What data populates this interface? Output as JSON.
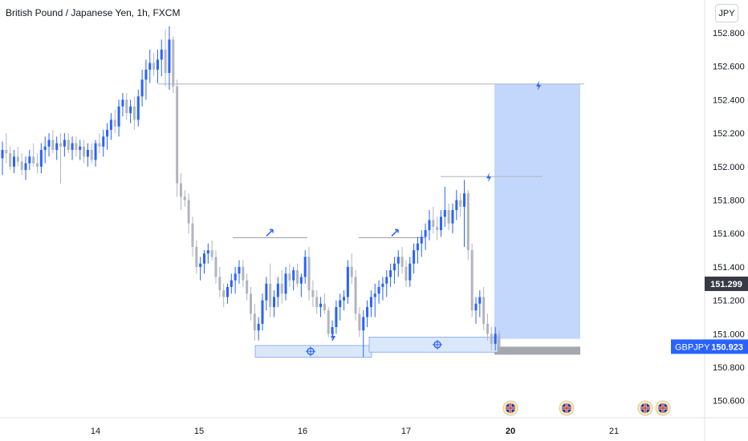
{
  "header": {
    "title": "British Pound / Japanese Yen, 1h, FXCM",
    "currency_button": "JPY"
  },
  "price_tags": {
    "crosshair_price": "151.299",
    "symbol": "GBPJPY",
    "last_price": "150.923"
  },
  "colors": {
    "up": "#2962ff",
    "down": "#b2b5be",
    "zone": "#bbd3fb",
    "axis_bg": "#ffffff",
    "tag_dark": "#363a45",
    "tag_blue": "#2962ff"
  },
  "chart_data": {
    "type": "candlestick",
    "title": "British Pound / Japanese Yen, 1h, FXCM",
    "ylim": [
      150.45,
      152.9
    ],
    "y_ticks": [
      "152.800",
      "152.600",
      "152.400",
      "152.200",
      "152.000",
      "151.800",
      "151.600",
      "151.400",
      "151.200",
      "151.000",
      "150.800",
      "150.600"
    ],
    "x_ticks": [
      "14",
      "15",
      "16",
      "17",
      "20",
      "21"
    ],
    "last_price": 150.923,
    "marked_price": 151.299,
    "series_ohlc": [
      [
        152.05,
        152.15,
        151.95,
        152.1
      ],
      [
        152.1,
        152.2,
        152.02,
        152.08
      ],
      [
        152.08,
        152.12,
        151.98,
        152.0
      ],
      [
        152.0,
        152.1,
        151.96,
        152.06
      ],
      [
        152.06,
        152.12,
        152.0,
        152.03
      ],
      [
        152.03,
        152.08,
        151.95,
        151.98
      ],
      [
        151.98,
        152.06,
        151.92,
        152.02
      ],
      [
        152.02,
        152.1,
        151.98,
        152.06
      ],
      [
        152.06,
        152.14,
        152.0,
        152.02
      ],
      [
        152.02,
        152.08,
        151.96,
        152.0
      ],
      [
        152.0,
        152.14,
        151.96,
        152.1
      ],
      [
        152.1,
        152.18,
        152.02,
        152.12
      ],
      [
        152.12,
        152.2,
        152.06,
        152.16
      ],
      [
        152.16,
        152.22,
        152.08,
        152.1
      ],
      [
        152.1,
        152.18,
        152.04,
        152.14
      ],
      [
        152.14,
        152.2,
        151.9,
        152.12
      ],
      [
        152.12,
        152.2,
        152.06,
        152.16
      ],
      [
        152.16,
        152.2,
        152.08,
        152.1
      ],
      [
        152.1,
        152.18,
        152.04,
        152.14
      ],
      [
        152.14,
        152.18,
        152.06,
        152.1
      ],
      [
        152.1,
        152.16,
        152.04,
        152.12
      ],
      [
        152.12,
        152.16,
        152.02,
        152.06
      ],
      [
        152.06,
        152.14,
        152.0,
        152.1
      ],
      [
        152.1,
        152.14,
        152.02,
        152.04
      ],
      [
        152.04,
        152.16,
        152.0,
        152.14
      ],
      [
        152.14,
        152.2,
        152.08,
        152.12
      ],
      [
        152.12,
        152.22,
        152.06,
        152.18
      ],
      [
        152.18,
        152.26,
        152.1,
        152.22
      ],
      [
        152.22,
        152.32,
        152.16,
        152.28
      ],
      [
        152.28,
        152.34,
        152.2,
        152.24
      ],
      [
        152.24,
        152.4,
        152.18,
        152.36
      ],
      [
        152.36,
        152.44,
        152.3,
        152.4
      ],
      [
        152.4,
        152.44,
        152.28,
        152.32
      ],
      [
        152.32,
        152.4,
        152.26,
        152.36
      ],
      [
        152.36,
        152.42,
        152.22,
        152.28
      ],
      [
        152.28,
        152.46,
        152.24,
        152.42
      ],
      [
        152.42,
        152.58,
        152.36,
        152.52
      ],
      [
        152.52,
        152.64,
        152.4,
        152.58
      ],
      [
        152.58,
        152.7,
        152.5,
        152.62
      ],
      [
        152.62,
        152.68,
        152.54,
        152.58
      ],
      [
        152.58,
        152.7,
        152.5,
        152.64
      ],
      [
        152.64,
        152.76,
        152.54,
        152.7
      ],
      [
        152.7,
        152.82,
        152.48,
        152.56
      ],
      [
        152.56,
        152.84,
        152.46,
        152.76
      ],
      [
        152.76,
        152.78,
        152.44,
        152.48
      ],
      [
        152.48,
        152.52,
        151.82,
        151.9
      ],
      [
        151.9,
        151.96,
        151.74,
        151.82
      ],
      [
        151.82,
        151.86,
        151.76,
        151.8
      ],
      [
        151.8,
        151.84,
        151.6,
        151.66
      ],
      [
        151.66,
        151.7,
        151.46,
        151.52
      ],
      [
        151.52,
        151.56,
        151.36,
        151.4
      ],
      [
        151.4,
        151.46,
        151.32,
        151.42
      ],
      [
        151.42,
        151.5,
        151.36,
        151.48
      ],
      [
        151.48,
        151.54,
        151.42,
        151.5
      ],
      [
        151.5,
        151.56,
        151.44,
        151.46
      ],
      [
        151.46,
        151.5,
        151.3,
        151.34
      ],
      [
        151.34,
        151.4,
        151.22,
        151.26
      ],
      [
        151.26,
        151.3,
        151.16,
        151.22
      ],
      [
        151.22,
        151.3,
        151.18,
        151.28
      ],
      [
        151.28,
        151.36,
        151.24,
        151.32
      ],
      [
        151.32,
        151.4,
        151.24,
        151.36
      ],
      [
        151.36,
        151.44,
        151.3,
        151.4
      ],
      [
        151.4,
        151.44,
        151.28,
        151.32
      ],
      [
        151.32,
        151.36,
        151.2,
        151.24
      ],
      [
        151.24,
        151.28,
        151.08,
        151.12
      ],
      [
        151.12,
        151.18,
        150.96,
        151.02
      ],
      [
        151.02,
        151.1,
        150.96,
        151.06
      ],
      [
        151.06,
        151.24,
        151.02,
        151.2
      ],
      [
        151.2,
        151.34,
        151.14,
        151.3
      ],
      [
        151.3,
        151.42,
        151.1,
        151.16
      ],
      [
        151.16,
        151.26,
        151.1,
        151.22
      ],
      [
        151.22,
        151.34,
        151.16,
        151.3
      ],
      [
        151.3,
        151.38,
        151.18,
        151.24
      ],
      [
        151.24,
        151.4,
        151.2,
        151.36
      ],
      [
        151.36,
        151.42,
        151.28,
        151.32
      ],
      [
        151.32,
        151.4,
        151.26,
        151.38
      ],
      [
        151.38,
        151.42,
        151.28,
        151.3
      ],
      [
        151.3,
        151.36,
        151.22,
        151.34
      ],
      [
        151.34,
        151.5,
        151.3,
        151.46
      ],
      [
        151.46,
        151.52,
        151.2,
        151.26
      ],
      [
        151.26,
        151.32,
        151.16,
        151.22
      ],
      [
        151.22,
        151.26,
        151.12,
        151.16
      ],
      [
        151.16,
        151.22,
        151.1,
        151.18
      ],
      [
        151.18,
        151.24,
        151.12,
        151.14
      ],
      [
        151.14,
        151.16,
        150.98,
        151.0
      ],
      [
        151.0,
        151.08,
        150.96,
        151.04
      ],
      [
        151.04,
        151.2,
        151.0,
        151.16
      ],
      [
        151.16,
        151.24,
        151.08,
        151.2
      ],
      [
        151.2,
        151.26,
        151.14,
        151.22
      ],
      [
        151.22,
        151.44,
        151.18,
        151.4
      ],
      [
        151.4,
        151.48,
        151.3,
        151.34
      ],
      [
        151.34,
        151.38,
        151.08,
        151.12
      ],
      [
        151.12,
        151.16,
        150.98,
        151.02
      ],
      [
        151.02,
        151.14,
        150.86,
        151.1
      ],
      [
        151.1,
        151.2,
        151.04,
        151.16
      ],
      [
        151.16,
        151.26,
        151.1,
        151.22
      ],
      [
        151.22,
        151.3,
        151.1,
        151.24
      ],
      [
        151.24,
        151.32,
        151.18,
        151.28
      ],
      [
        151.28,
        151.34,
        151.2,
        151.3
      ],
      [
        151.3,
        151.38,
        151.22,
        151.34
      ],
      [
        151.34,
        151.42,
        151.28,
        151.38
      ],
      [
        151.38,
        151.46,
        151.3,
        151.42
      ],
      [
        151.42,
        151.5,
        151.34,
        151.46
      ],
      [
        151.46,
        151.52,
        151.36,
        151.4
      ],
      [
        151.4,
        151.44,
        151.28,
        151.32
      ],
      [
        151.32,
        151.46,
        151.28,
        151.42
      ],
      [
        151.42,
        151.54,
        151.36,
        151.5
      ],
      [
        151.5,
        151.58,
        151.42,
        151.54
      ],
      [
        151.54,
        151.62,
        151.46,
        151.58
      ],
      [
        151.58,
        151.66,
        151.5,
        151.62
      ],
      [
        151.62,
        151.74,
        151.56,
        151.68
      ],
      [
        151.68,
        151.76,
        151.6,
        151.64
      ],
      [
        151.64,
        151.7,
        151.56,
        151.62
      ],
      [
        151.62,
        151.74,
        151.58,
        151.7
      ],
      [
        151.7,
        151.88,
        151.64,
        151.74
      ],
      [
        151.74,
        151.78,
        151.62,
        151.66
      ],
      [
        151.66,
        151.78,
        151.6,
        151.74
      ],
      [
        151.74,
        151.86,
        151.68,
        151.8
      ],
      [
        151.8,
        151.84,
        151.7,
        151.76
      ],
      [
        151.76,
        151.92,
        151.52,
        151.84
      ],
      [
        151.84,
        151.86,
        151.44,
        151.5
      ],
      [
        151.5,
        151.54,
        151.1,
        151.14
      ],
      [
        151.14,
        151.22,
        151.06,
        151.18
      ],
      [
        151.18,
        151.26,
        151.1,
        151.22
      ],
      [
        151.22,
        151.28,
        151.02,
        151.06
      ],
      [
        151.06,
        151.12,
        150.96,
        151.0
      ],
      [
        151.0,
        151.04,
        150.9,
        150.94
      ],
      [
        150.94,
        151.04,
        150.9,
        151.0
      ],
      [
        151.0,
        151.02,
        150.9,
        150.92
      ]
    ],
    "annotations": {
      "resistance_level": 152.494,
      "upper_level": 151.94,
      "target_zone": [
        150.97,
        152.494
      ],
      "lower_zone": [
        150.923,
        150.875
      ],
      "demand_zone_1": [
        150.86,
        150.93
      ],
      "demand_zone_2": [
        150.89,
        150.98
      ],
      "range_line_1": 151.575,
      "range_line_2": 151.575
    }
  }
}
